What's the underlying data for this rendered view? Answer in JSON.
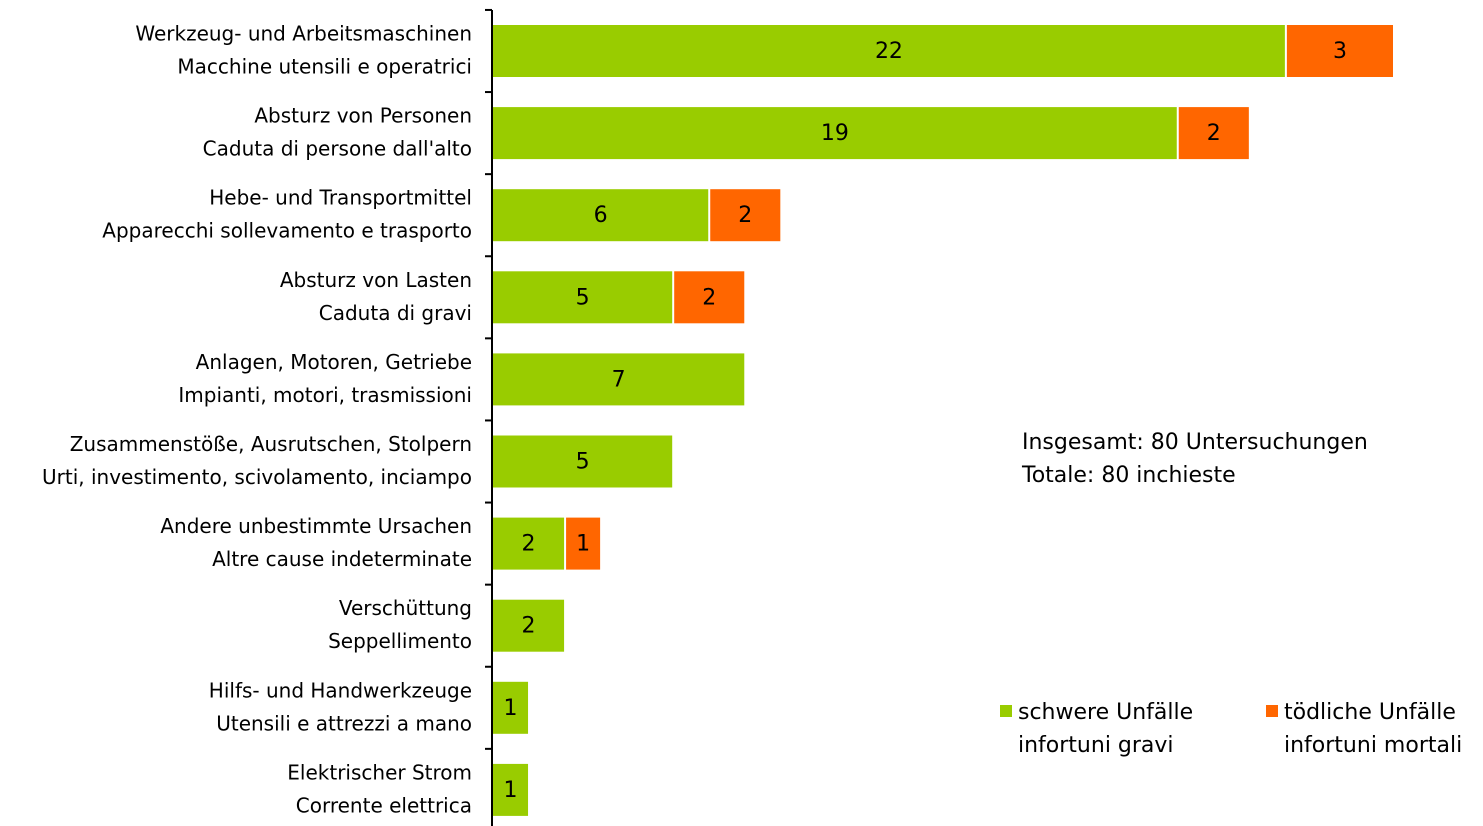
{
  "chart_data": {
    "type": "bar",
    "orientation": "horizontal",
    "stacked": true,
    "categories": [
      [
        "Werkzeug- und Arbeitsmaschinen",
        "Macchine utensili e operatrici"
      ],
      [
        "Absturz von Personen",
        "Caduta di persone dall'alto"
      ],
      [
        "Hebe- und Transportmittel",
        "Apparecchi sollevamento e trasporto"
      ],
      [
        "Absturz von Lasten",
        "Caduta di gravi"
      ],
      [
        "Anlagen, Motoren, Getriebe",
        "Impianti, motori, trasmissioni"
      ],
      [
        "Zusammenstöße, Ausrutschen, Stolpern",
        "Urti, investimento, scivolamento, inciampo"
      ],
      [
        "Andere unbestimmte Ursachen",
        "Altre cause indeterminate"
      ],
      [
        "Verschüttung",
        "Seppellimento"
      ],
      [
        "Hilfs- und Handwerkzeuge",
        "Utensili e attrezzi a mano"
      ],
      [
        "Elektrischer Strom",
        "Corrente elettrica"
      ]
    ],
    "series": [
      {
        "name": [
          "schwere Unfälle",
          "infortuni gravi"
        ],
        "color": "#99cc00",
        "values": [
          22,
          19,
          6,
          5,
          7,
          5,
          2,
          2,
          1,
          1
        ]
      },
      {
        "name": [
          "tödliche Unfälle",
          "infortuni mortali"
        ],
        "color": "#ff6600",
        "values": [
          3,
          2,
          2,
          2,
          null,
          null,
          1,
          null,
          null,
          null
        ]
      }
    ],
    "annotation": [
      "Insgesamt: 80 Untersuchungen",
      "Totale: 80 inchieste"
    ],
    "xlim": [
      0,
      25
    ]
  }
}
